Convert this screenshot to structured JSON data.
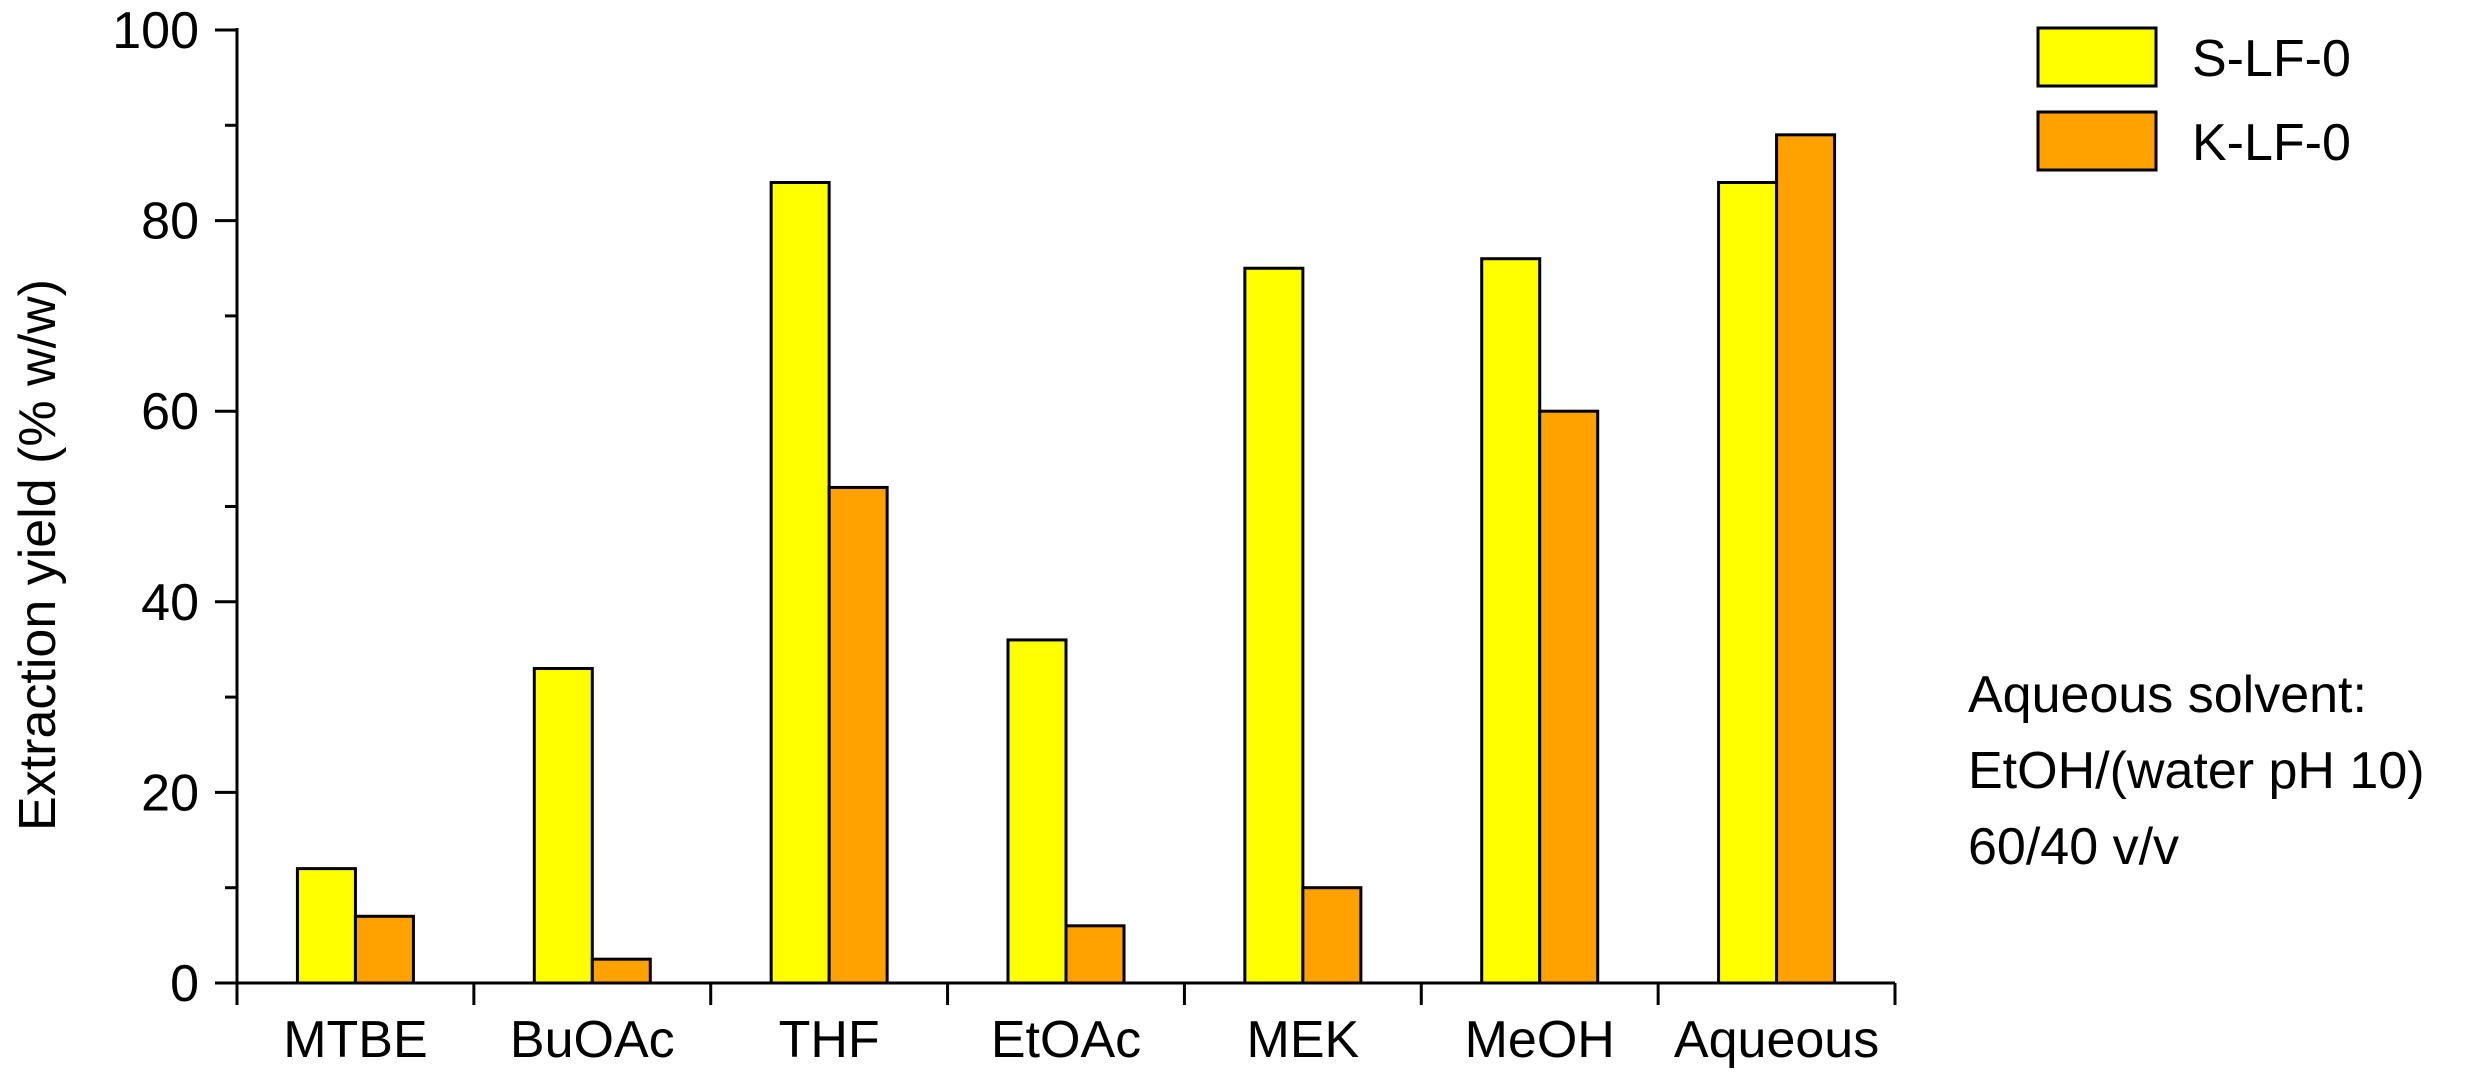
{
  "chart_data": {
    "type": "bar",
    "title": "",
    "xlabel": "",
    "ylabel": "Extraction yield  (% w/w)",
    "ylim": [
      0,
      100
    ],
    "yticks": [
      "0",
      "20",
      "40",
      "60",
      "80",
      "100"
    ],
    "categories": [
      "MTBE",
      "BuOAc",
      "THF",
      "EtOAc",
      "MEK",
      "MeOH",
      "Aqueous"
    ],
    "series": [
      {
        "name": "S-LF-0",
        "color": "#ffff00",
        "values": [
          12,
          33,
          84,
          36,
          75,
          76,
          84
        ]
      },
      {
        "name": "K-LF-0",
        "color": "#ffa200",
        "values": [
          7,
          2.5,
          52,
          6,
          10,
          60,
          89
        ]
      }
    ],
    "grid": false,
    "legend_position": "top-right",
    "annotation": [
      "Aqueous solvent:",
      "EtOH/(water pH 10)",
      "60/40 v/v"
    ]
  }
}
